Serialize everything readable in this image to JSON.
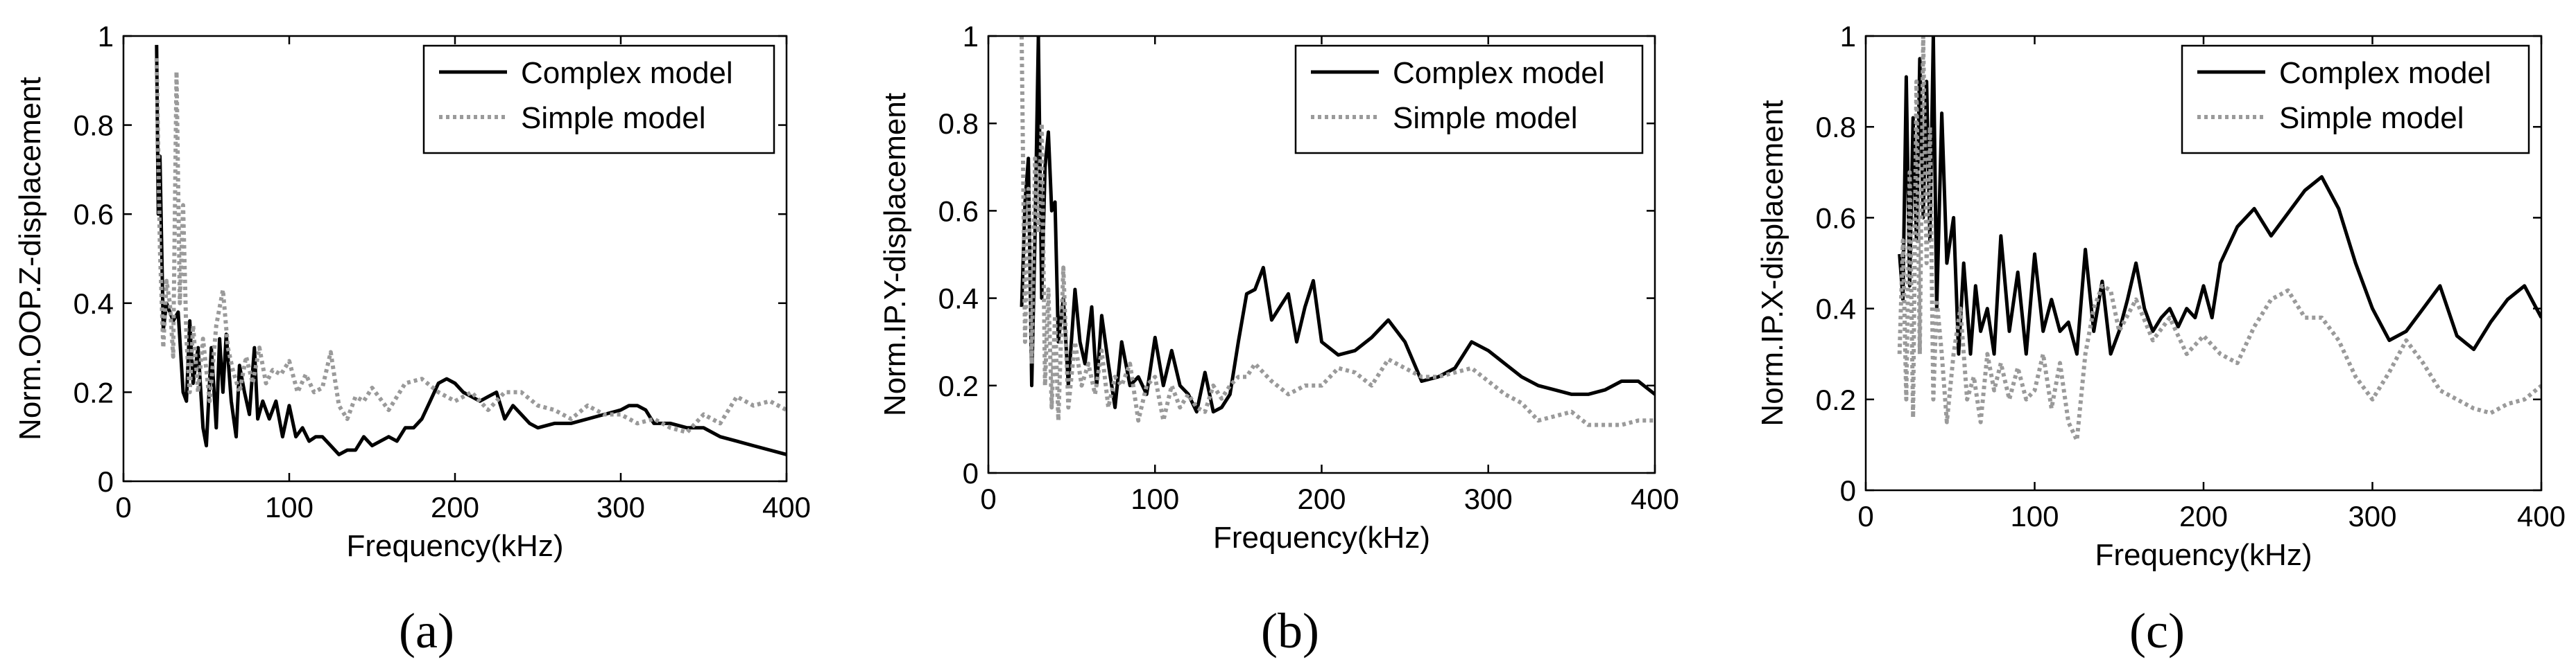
{
  "figure": {
    "captions": [
      "(a)",
      "(b)",
      "(c)"
    ],
    "colors": {
      "complex": "#000000",
      "simple": "#9a9a9a"
    }
  },
  "chart_data": [
    {
      "type": "line",
      "panel": "(a)",
      "xlabel": "Frequency(kHz)",
      "ylabel": "Norm.OOP.Z-displacement",
      "xlim": [
        0,
        400
      ],
      "ylim": [
        0,
        1
      ],
      "xticks": [
        "0",
        "100",
        "200",
        "300",
        "400"
      ],
      "yticks": [
        "0",
        "0.2",
        "0.4",
        "0.6",
        "0.8",
        "1"
      ],
      "legend_position": "top-right",
      "grid": false,
      "series": [
        {
          "name": "Complex model",
          "style": "solid",
          "x": [
            20,
            21,
            22,
            24,
            26,
            30,
            33,
            36,
            38,
            40,
            42,
            45,
            48,
            50,
            53,
            56,
            58,
            60,
            62,
            65,
            68,
            70,
            73,
            76,
            79,
            81,
            84,
            88,
            92,
            96,
            100,
            104,
            108,
            112,
            116,
            120,
            125,
            130,
            135,
            140,
            145,
            150,
            155,
            160,
            165,
            170,
            175,
            180,
            185,
            190,
            195,
            200,
            205,
            210,
            215,
            220,
            225,
            230,
            235,
            240,
            245,
            250,
            260,
            270,
            280,
            290,
            300,
            305,
            310,
            315,
            320,
            330,
            340,
            350,
            360,
            370,
            380,
            390,
            400
          ],
          "y": [
            0.98,
            0.6,
            0.73,
            0.34,
            0.4,
            0.36,
            0.38,
            0.2,
            0.18,
            0.36,
            0.22,
            0.3,
            0.12,
            0.08,
            0.3,
            0.12,
            0.32,
            0.2,
            0.33,
            0.18,
            0.1,
            0.26,
            0.2,
            0.15,
            0.3,
            0.14,
            0.18,
            0.14,
            0.18,
            0.1,
            0.17,
            0.1,
            0.12,
            0.09,
            0.1,
            0.1,
            0.08,
            0.06,
            0.07,
            0.07,
            0.1,
            0.08,
            0.09,
            0.1,
            0.09,
            0.12,
            0.12,
            0.14,
            0.18,
            0.22,
            0.23,
            0.22,
            0.2,
            0.19,
            0.18,
            0.19,
            0.2,
            0.14,
            0.17,
            0.15,
            0.13,
            0.12,
            0.13,
            0.13,
            0.14,
            0.15,
            0.16,
            0.17,
            0.17,
            0.16,
            0.13,
            0.13,
            0.12,
            0.12,
            0.1,
            0.09,
            0.08,
            0.07,
            0.06
          ]
        },
        {
          "name": "Simple model",
          "style": "dotted",
          "x": [
            20,
            22,
            24,
            26,
            28,
            30,
            32,
            34,
            36,
            38,
            40,
            42,
            45,
            48,
            52,
            56,
            60,
            63,
            66,
            70,
            74,
            78,
            82,
            86,
            90,
            95,
            100,
            105,
            110,
            115,
            120,
            125,
            130,
            135,
            140,
            145,
            150,
            160,
            170,
            180,
            190,
            200,
            210,
            220,
            230,
            240,
            250,
            260,
            270,
            280,
            290,
            300,
            310,
            320,
            330,
            340,
            350,
            360,
            370,
            380,
            390,
            400
          ],
          "y": [
            0.95,
            0.52,
            0.3,
            0.45,
            0.4,
            0.28,
            0.92,
            0.4,
            0.62,
            0.32,
            0.2,
            0.35,
            0.2,
            0.32,
            0.18,
            0.35,
            0.43,
            0.3,
            0.25,
            0.2,
            0.28,
            0.22,
            0.3,
            0.22,
            0.25,
            0.24,
            0.27,
            0.2,
            0.24,
            0.2,
            0.21,
            0.29,
            0.17,
            0.14,
            0.19,
            0.18,
            0.21,
            0.16,
            0.22,
            0.23,
            0.2,
            0.18,
            0.2,
            0.16,
            0.2,
            0.2,
            0.17,
            0.16,
            0.14,
            0.17,
            0.15,
            0.15,
            0.13,
            0.14,
            0.12,
            0.11,
            0.15,
            0.13,
            0.19,
            0.17,
            0.18,
            0.16
          ]
        }
      ]
    },
    {
      "type": "line",
      "panel": "(b)",
      "xlabel": "Frequency(kHz)",
      "ylabel": "Norm.IP.Y-displacement",
      "xlim": [
        0,
        400
      ],
      "ylim": [
        0,
        1
      ],
      "xticks": [
        "0",
        "100",
        "200",
        "300",
        "400"
      ],
      "yticks": [
        "0",
        "0.2",
        "0.4",
        "0.6",
        "0.8",
        "1"
      ],
      "legend_position": "top-right",
      "grid": false,
      "series": [
        {
          "name": "Complex model",
          "style": "solid",
          "x": [
            20,
            22,
            24,
            26,
            28,
            30,
            32,
            34,
            36,
            38,
            40,
            42,
            45,
            48,
            52,
            55,
            58,
            62,
            65,
            68,
            72,
            76,
            80,
            85,
            90,
            95,
            100,
            105,
            110,
            115,
            120,
            125,
            130,
            135,
            140,
            145,
            150,
            155,
            160,
            165,
            170,
            175,
            180,
            185,
            190,
            195,
            200,
            210,
            220,
            230,
            240,
            250,
            260,
            270,
            280,
            290,
            300,
            310,
            320,
            330,
            340,
            350,
            360,
            370,
            380,
            390,
            400
          ],
          "y": [
            0.38,
            0.62,
            0.72,
            0.2,
            0.55,
            1.0,
            0.4,
            0.7,
            0.78,
            0.6,
            0.62,
            0.3,
            0.4,
            0.2,
            0.42,
            0.3,
            0.25,
            0.38,
            0.2,
            0.36,
            0.25,
            0.15,
            0.3,
            0.2,
            0.22,
            0.18,
            0.31,
            0.2,
            0.28,
            0.2,
            0.18,
            0.14,
            0.23,
            0.14,
            0.15,
            0.18,
            0.3,
            0.41,
            0.42,
            0.47,
            0.35,
            0.38,
            0.41,
            0.3,
            0.38,
            0.44,
            0.3,
            0.27,
            0.28,
            0.31,
            0.35,
            0.3,
            0.21,
            0.22,
            0.24,
            0.3,
            0.28,
            0.25,
            0.22,
            0.2,
            0.19,
            0.18,
            0.18,
            0.19,
            0.21,
            0.21,
            0.18
          ]
        },
        {
          "name": "Simple model",
          "style": "dotted",
          "x": [
            20,
            22,
            24,
            26,
            28,
            30,
            32,
            34,
            36,
            38,
            40,
            42,
            45,
            48,
            52,
            56,
            60,
            64,
            68,
            72,
            76,
            80,
            85,
            90,
            95,
            100,
            105,
            110,
            115,
            120,
            125,
            130,
            135,
            140,
            145,
            150,
            155,
            160,
            165,
            170,
            180,
            190,
            200,
            210,
            220,
            230,
            240,
            250,
            260,
            270,
            280,
            290,
            300,
            310,
            320,
            330,
            340,
            350,
            360,
            370,
            380,
            390,
            400
          ],
          "y": [
            1.0,
            0.3,
            0.65,
            0.25,
            0.72,
            0.55,
            0.8,
            0.2,
            0.42,
            0.15,
            0.36,
            0.12,
            0.47,
            0.15,
            0.3,
            0.2,
            0.25,
            0.18,
            0.28,
            0.15,
            0.22,
            0.2,
            0.25,
            0.12,
            0.2,
            0.22,
            0.12,
            0.2,
            0.15,
            0.18,
            0.15,
            0.14,
            0.2,
            0.17,
            0.2,
            0.22,
            0.22,
            0.25,
            0.23,
            0.21,
            0.18,
            0.2,
            0.2,
            0.24,
            0.23,
            0.2,
            0.26,
            0.24,
            0.22,
            0.22,
            0.23,
            0.24,
            0.21,
            0.18,
            0.16,
            0.12,
            0.13,
            0.14,
            0.11,
            0.11,
            0.11,
            0.12,
            0.12
          ]
        }
      ]
    },
    {
      "type": "line",
      "panel": "(c)",
      "xlabel": "Frequency(kHz)",
      "ylabel": "Norm.IP.X-displacement",
      "xlim": [
        0,
        400
      ],
      "ylim": [
        0,
        1
      ],
      "xticks": [
        "0",
        "100",
        "200",
        "300",
        "400"
      ],
      "yticks": [
        "0",
        "0.2",
        "0.4",
        "0.6",
        "0.8",
        "1"
      ],
      "legend_position": "top-right",
      "grid": false,
      "series": [
        {
          "name": "Complex model",
          "style": "solid",
          "x": [
            20,
            22,
            24,
            26,
            28,
            30,
            32,
            34,
            36,
            38,
            40,
            42,
            45,
            48,
            52,
            55,
            58,
            62,
            65,
            68,
            72,
            76,
            80,
            85,
            90,
            95,
            100,
            105,
            110,
            115,
            120,
            125,
            130,
            135,
            140,
            145,
            150,
            155,
            160,
            165,
            170,
            175,
            180,
            185,
            190,
            195,
            200,
            205,
            210,
            220,
            230,
            240,
            250,
            260,
            270,
            280,
            290,
            300,
            310,
            320,
            330,
            340,
            350,
            360,
            370,
            380,
            390,
            400
          ],
          "y": [
            0.52,
            0.42,
            0.91,
            0.45,
            0.82,
            0.55,
            0.95,
            0.6,
            0.9,
            0.55,
            1.0,
            0.4,
            0.83,
            0.5,
            0.6,
            0.3,
            0.5,
            0.3,
            0.45,
            0.35,
            0.4,
            0.3,
            0.56,
            0.35,
            0.48,
            0.3,
            0.52,
            0.35,
            0.42,
            0.35,
            0.37,
            0.3,
            0.53,
            0.35,
            0.46,
            0.3,
            0.35,
            0.42,
            0.5,
            0.4,
            0.35,
            0.38,
            0.4,
            0.36,
            0.4,
            0.38,
            0.45,
            0.38,
            0.5,
            0.58,
            0.62,
            0.56,
            0.61,
            0.66,
            0.69,
            0.62,
            0.5,
            0.4,
            0.33,
            0.35,
            0.4,
            0.45,
            0.34,
            0.31,
            0.37,
            0.42,
            0.45,
            0.38
          ]
        },
        {
          "name": "Simple model",
          "style": "dotted",
          "x": [
            20,
            22,
            24,
            26,
            28,
            30,
            32,
            34,
            36,
            38,
            40,
            42,
            45,
            48,
            52,
            56,
            60,
            64,
            68,
            72,
            76,
            80,
            85,
            90,
            95,
            100,
            105,
            110,
            115,
            120,
            125,
            130,
            135,
            140,
            145,
            150,
            160,
            170,
            180,
            190,
            200,
            210,
            220,
            230,
            240,
            250,
            260,
            270,
            280,
            290,
            300,
            310,
            320,
            330,
            340,
            350,
            360,
            370,
            380,
            390,
            400
          ],
          "y": [
            0.3,
            0.55,
            0.2,
            0.7,
            0.16,
            0.9,
            0.3,
            1.0,
            0.5,
            0.8,
            0.2,
            0.42,
            0.3,
            0.15,
            0.3,
            0.4,
            0.2,
            0.25,
            0.15,
            0.3,
            0.22,
            0.28,
            0.2,
            0.27,
            0.2,
            0.22,
            0.3,
            0.18,
            0.28,
            0.15,
            0.11,
            0.3,
            0.4,
            0.45,
            0.44,
            0.35,
            0.42,
            0.33,
            0.38,
            0.3,
            0.34,
            0.3,
            0.28,
            0.36,
            0.42,
            0.44,
            0.38,
            0.38,
            0.33,
            0.25,
            0.2,
            0.26,
            0.33,
            0.28,
            0.22,
            0.2,
            0.18,
            0.17,
            0.19,
            0.2,
            0.23
          ]
        }
      ]
    }
  ]
}
